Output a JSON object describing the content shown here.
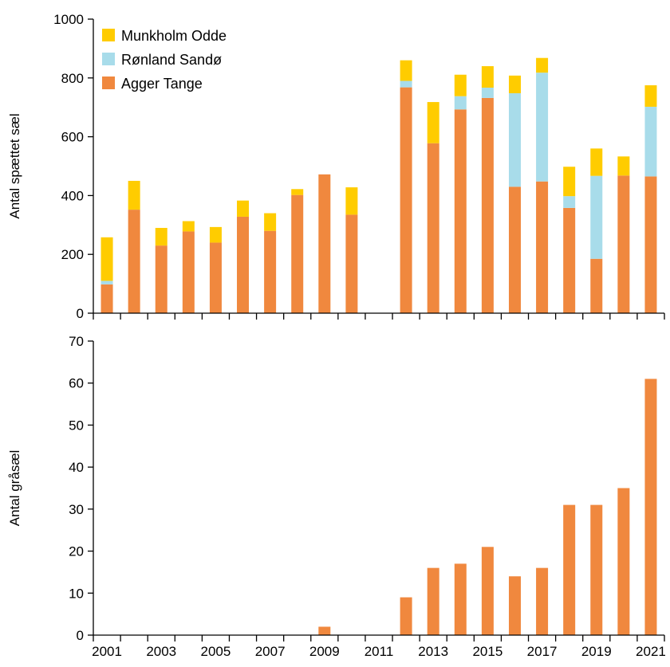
{
  "chart_data": [
    {
      "type": "bar",
      "stacked": true,
      "ylabel": "Antal spættet sæl",
      "ylim": [
        0,
        1000
      ],
      "yticks": [
        0,
        200,
        400,
        600,
        800,
        1000
      ],
      "x": [
        2001,
        2002,
        2003,
        2004,
        2005,
        2006,
        2007,
        2008,
        2009,
        2010,
        2011,
        2012,
        2013,
        2014,
        2015,
        2016,
        2017,
        2018,
        2019,
        2020,
        2021
      ],
      "legend_placement": "top-left",
      "series": [
        {
          "name": "Agger Tange",
          "color": "#f0883e",
          "values": [
            98,
            352,
            230,
            278,
            240,
            328,
            280,
            402,
            472,
            335,
            0,
            768,
            578,
            693,
            732,
            430,
            448,
            358,
            185,
            468,
            465
          ]
        },
        {
          "name": "Rønland Sandø",
          "color": "#a8dcea",
          "values": [
            12,
            0,
            0,
            0,
            0,
            0,
            0,
            0,
            0,
            0,
            0,
            22,
            0,
            45,
            35,
            318,
            370,
            40,
            282,
            0,
            237
          ]
        },
        {
          "name": "Munkholm Odde",
          "color": "#ffcc00",
          "values": [
            148,
            98,
            60,
            35,
            53,
            55,
            60,
            20,
            0,
            93,
            0,
            70,
            140,
            73,
            73,
            60,
            50,
            100,
            93,
            65,
            73
          ]
        }
      ]
    },
    {
      "type": "bar",
      "ylabel": "Antal gråsæl",
      "ylim": [
        0,
        70
      ],
      "yticks": [
        0,
        10,
        20,
        30,
        40,
        50,
        60,
        70
      ],
      "x": [
        2001,
        2002,
        2003,
        2004,
        2005,
        2006,
        2007,
        2008,
        2009,
        2010,
        2011,
        2012,
        2013,
        2014,
        2015,
        2016,
        2017,
        2018,
        2019,
        2020,
        2021
      ],
      "xticklabels": [
        "2001",
        "2003",
        "2005",
        "2007",
        "2009",
        "2011",
        "2013",
        "2015",
        "2017",
        "2019",
        "2021"
      ],
      "series": [
        {
          "color": "#f0883e",
          "values": [
            0,
            0,
            0,
            0,
            0,
            0,
            0,
            0,
            2,
            0,
            0,
            9,
            16,
            17,
            21,
            14,
            16,
            31,
            31,
            35,
            61
          ]
        }
      ]
    }
  ]
}
